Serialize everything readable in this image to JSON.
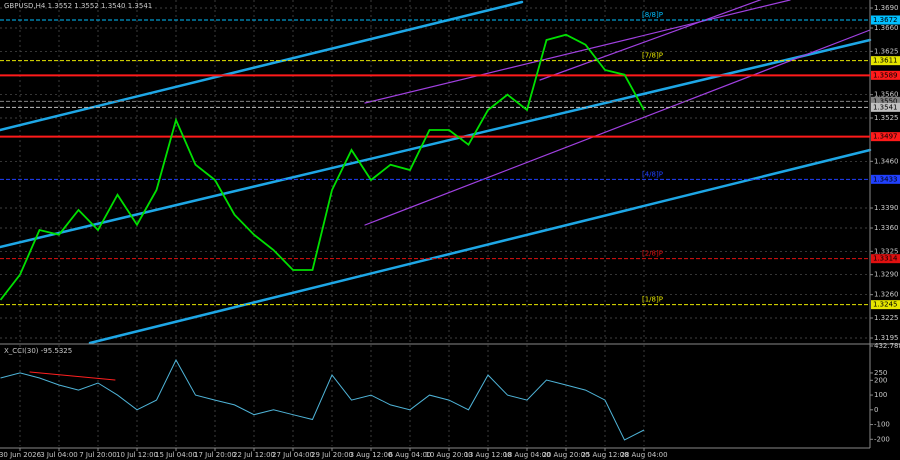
{
  "chart_data": [
    {
      "type": "line",
      "title": "GBPUSD,H4  1.3552 1.3552 1.3540 1.3541",
      "categories": [
        null,
        "30 Jun 2026",
        null,
        "3 Jul 04:00",
        null,
        "7 Jul 20:00",
        null,
        "10 Jul 12:00",
        null,
        "15 Jul 04:00",
        null,
        "17 Jul 20:00",
        null,
        "22 Jul 12:00",
        null,
        "27 Jul 04:00",
        null,
        "29 Jul 20:00",
        null,
        "3 Aug 12:00",
        null,
        "6 Aug 04:00",
        null,
        "10 Aug 20:00",
        null,
        "13 Aug 12:00",
        null,
        "18 Aug 04:00",
        null,
        "20 Aug 20:00",
        null,
        "25 Aug 12:00",
        null,
        "28 Aug 04:00",
        null,
        null,
        null,
        null,
        null,
        null,
        null,
        null,
        null,
        null,
        null
      ],
      "series": [
        {
          "color": "#00e000",
          "values": [
            1.3252,
            1.329,
            1.3357,
            1.335,
            1.3387,
            1.3357,
            1.341,
            1.3365,
            1.3417,
            1.3522,
            1.3455,
            1.3432,
            1.338,
            1.335,
            1.3327,
            1.3297,
            1.3297,
            1.3417,
            1.3477,
            1.3432,
            1.3455,
            1.3447,
            1.3507,
            1.3507,
            1.3485,
            1.3537,
            1.356,
            1.3537,
            1.3642,
            1.365,
            1.3635,
            1.3597,
            1.359,
            1.3537,
            null,
            null,
            null,
            null,
            null,
            null,
            null,
            null,
            null,
            null,
            null
          ]
        }
      ],
      "ylim": [
        1.3183,
        1.3702
      ],
      "yticks": [
        {
          "value": 1.369,
          "label": "1.3690"
        },
        {
          "value": 1.366,
          "label": "1.3660"
        },
        {
          "value": 1.3625,
          "label": "1.3625"
        },
        {
          "value": 1.356,
          "label": "1.3560"
        },
        {
          "value": 1.3525,
          "label": "1.3525"
        },
        {
          "value": 1.346,
          "label": "1.3460"
        },
        {
          "value": 1.339,
          "label": "1.3390"
        },
        {
          "value": 1.336,
          "label": "1.3360"
        },
        {
          "value": 1.3325,
          "label": "1.3325"
        },
        {
          "value": 1.329,
          "label": "1.3290"
        },
        {
          "value": 1.326,
          "label": "1.3260"
        },
        {
          "value": 1.3225,
          "label": "1.3225"
        },
        {
          "value": 1.3195,
          "label": "1.3195"
        }
      ],
      "levels": [
        {
          "value": 1.3672,
          "label": "1.3672",
          "color": "#00bfff",
          "tag": "[8/8]P"
        },
        {
          "value": 1.3611,
          "label": "1.3611",
          "color": "#e6e600",
          "tag": "[7/8]P"
        },
        {
          "value": 1.3589,
          "label": "1.3589",
          "color": "#ff1a1a"
        },
        {
          "value": 1.355,
          "label": "1.3550",
          "color": "#808080"
        },
        {
          "value": 1.3541,
          "label": "1.3541",
          "color": "#c0c0c0"
        },
        {
          "value": 1.3497,
          "label": "1.3497",
          "color": "#ff1a1a"
        },
        {
          "value": 1.3433,
          "label": "1.3433",
          "color": "#2040ff",
          "tag": "[4/8]P"
        },
        {
          "value": 1.3314,
          "label": "1.3314",
          "color": "#e01010",
          "tag": "[2/8]P"
        },
        {
          "value": 1.3245,
          "label": "1.3245",
          "color": "#e6e600",
          "tag": "[1/8]P"
        }
      ],
      "grid": true
    },
    {
      "type": "line",
      "title": "X_CCI(30) -95.5325",
      "series": [
        {
          "color": "#4fb4d8",
          "values": [
            216,
            250,
            216,
            168,
            134,
            182,
            100,
            0,
            66,
            338,
            100,
            66,
            33,
            -33,
            0,
            -33,
            -66,
            236,
            66,
            100,
            33,
            0,
            100,
            66,
            0,
            236,
            100,
            66,
            202,
            168,
            134,
            66,
            -205,
            -137,
            null,
            null,
            null,
            null,
            null,
            null,
            null,
            null,
            null,
            null,
            null
          ]
        }
      ],
      "ylim": [
        -245.497,
        432.788
      ],
      "yticks": [
        {
          "value": 432.788,
          "label": "432.788"
        },
        250,
        200,
        100,
        0,
        -100,
        -200
      ]
    }
  ]
}
